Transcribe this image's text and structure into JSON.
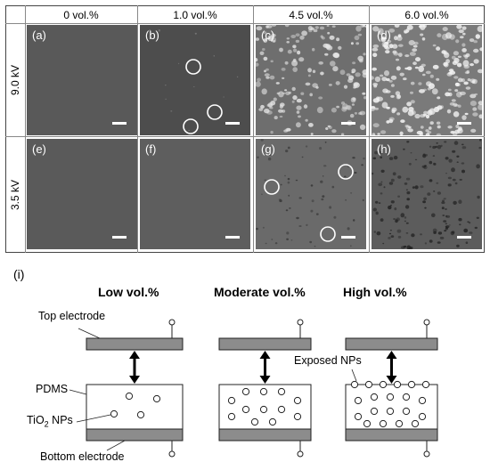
{
  "grid": {
    "columns": [
      "0 vol.%",
      "1.0 vol.%",
      "4.5 vol.%",
      "6.0 vol.%"
    ],
    "rows": [
      "9.0 kV",
      "3.5 kV"
    ],
    "panels": [
      "(a)",
      "(b)",
      "(c)",
      "(d)",
      "(e)",
      "(f)",
      "(g)",
      "(h)"
    ]
  },
  "schematic": {
    "label": "(i)",
    "headers": [
      "Low vol.%",
      "Moderate vol.%",
      "High vol.%"
    ],
    "top_electrode": "Top electrode",
    "bottom_electrode": "Bottom electrode",
    "pdms": "PDMS",
    "tio2_prefix": "TiO",
    "tio2_sub": "2",
    "tio2_suffix": " NPs",
    "exposed_nps": "Exposed NPs"
  },
  "colors": {
    "panel_dark": "#555555",
    "panel_light": "#7a7a7a",
    "electrode": "#8c8c8c",
    "arrow": "#000000"
  }
}
